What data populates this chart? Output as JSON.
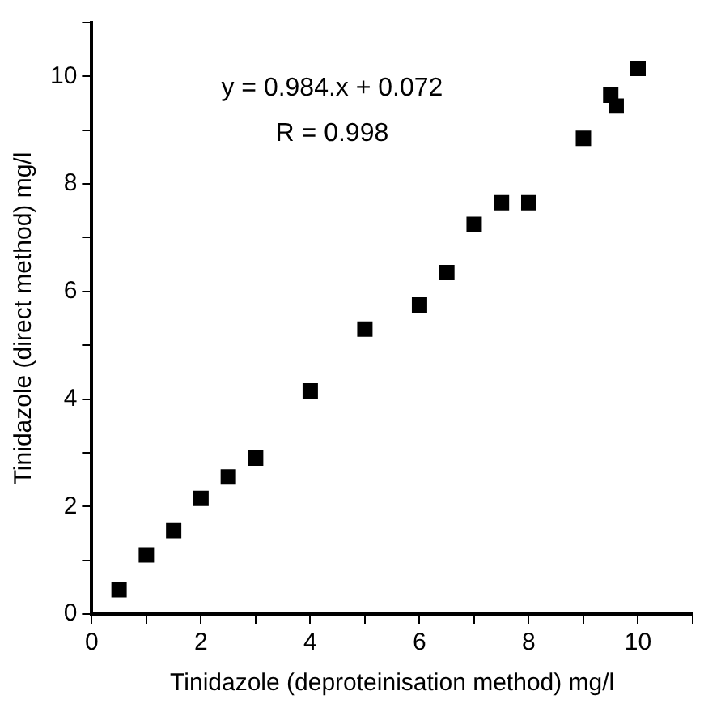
{
  "chart_data": {
    "type": "scatter",
    "xlabel": "Tinidazole (deproteinisation method) mg/l",
    "ylabel": "Tinidazole (direct method) mg/l",
    "annotations": [
      "y = 0.984.x + 0.072",
      "R = 0.998"
    ],
    "x": [
      0.5,
      1,
      1.5,
      2,
      2.5,
      3,
      4,
      5,
      6,
      6.5,
      7,
      7.5,
      8,
      9,
      9.5,
      9.6,
      10
    ],
    "series": [
      {
        "color": "#000000",
        "values": [
          0.45,
          1.1,
          1.55,
          2.15,
          2.55,
          2.9,
          4.15,
          5.3,
          5.75,
          6.35,
          7.25,
          7.65,
          7.65,
          8.85,
          9.65,
          9.45,
          10.15
        ]
      }
    ],
    "xlim": [
      0,
      11
    ],
    "xticks": [
      0,
      {
        "value": 1,
        "label": null
      },
      2,
      {
        "value": 3,
        "label": null
      },
      4,
      {
        "value": 5,
        "label": null
      },
      6,
      {
        "value": 7,
        "label": null
      },
      8,
      {
        "value": 9,
        "label": null
      },
      10,
      {
        "value": 11,
        "label": null
      }
    ],
    "ylim": [
      0,
      11
    ],
    "yticks": [
      0,
      {
        "value": 1,
        "label": null
      },
      2,
      {
        "value": 3,
        "label": null
      },
      4,
      {
        "value": 5,
        "label": null
      },
      6,
      {
        "value": 7,
        "label": null
      },
      8,
      {
        "value": 9,
        "label": null
      },
      10,
      {
        "value": 11,
        "label": null
      }
    ],
    "grid": false,
    "legend": false,
    "marker": "square"
  }
}
